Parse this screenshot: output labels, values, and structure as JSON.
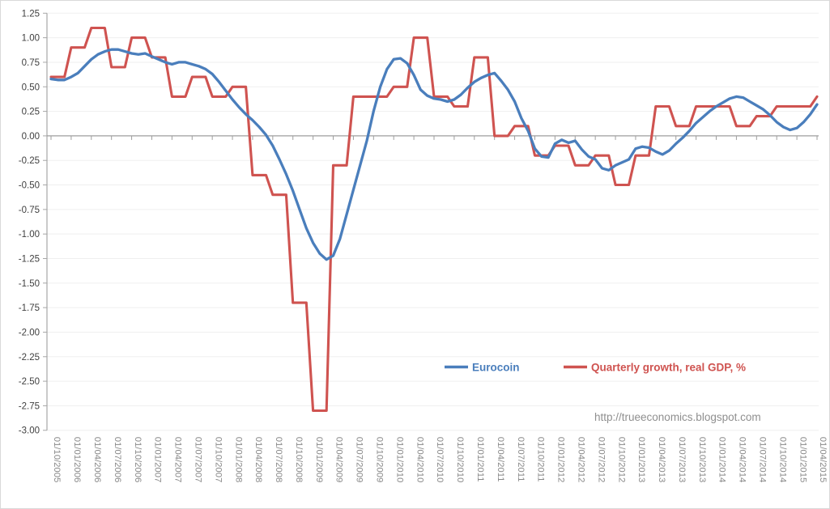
{
  "watermark": "http://trueeconomics.blogspot.com",
  "colors": {
    "eurocoin": "#4a7ebc",
    "gdp": "#cf5350",
    "grid": "#efefef",
    "axis": "#a6a6a6",
    "zero_line": "#9e9e9e",
    "x_label": "#898989",
    "y_label": "#3f3f3f",
    "watermark": "#8f8f8f",
    "frame_border": "#d9d9d9"
  },
  "legend": {
    "items": [
      {
        "label": "Eurocoin",
        "color_key": "eurocoin"
      },
      {
        "label": "Quarterly growth, real GDP, %",
        "color_key": "gdp"
      }
    ]
  },
  "chart_data": {
    "type": "line",
    "title": "",
    "xlabel": "",
    "ylabel": "",
    "grid": "horizontal",
    "legend_position": "inside-bottom-center",
    "ylim": [
      -3.0,
      1.25
    ],
    "y_tick_step": 0.25,
    "y_tick_labels": [
      "1.25",
      "1.00",
      "0.75",
      "0.50",
      "0.25",
      "0.00",
      "-0.25",
      "-0.50",
      "-0.75",
      "-1.00",
      "-1.25",
      "-1.50",
      "-1.75",
      "-2.00",
      "-2.25",
      "-2.50",
      "-2.75",
      "-3.00"
    ],
    "x_tick_labels": [
      "01/10/2005",
      "01/01/2006",
      "01/04/2006",
      "01/07/2006",
      "01/10/2006",
      "01/01/2007",
      "01/04/2007",
      "01/07/2007",
      "01/10/2007",
      "01/01/2008",
      "01/04/2008",
      "01/07/2008",
      "01/10/2008",
      "01/01/2009",
      "01/04/2009",
      "01/07/2009",
      "01/10/2009",
      "01/01/2010",
      "01/04/2010",
      "01/07/2010",
      "01/10/2010",
      "01/01/2011",
      "01/04/2011",
      "01/07/2011",
      "01/10/2011",
      "01/01/2012",
      "01/04/2012",
      "01/07/2012",
      "01/10/2012",
      "01/01/2013",
      "01/04/2013",
      "01/07/2013",
      "01/10/2013",
      "01/01/2014",
      "01/04/2014",
      "01/07/2014",
      "01/10/2014",
      "01/01/2015",
      "01/04/2015"
    ],
    "series": [
      {
        "name": "Eurocoin",
        "frequency": "monthly",
        "color_key": "eurocoin",
        "values": [
          0.58,
          0.57,
          0.57,
          0.6,
          0.64,
          0.71,
          0.78,
          0.83,
          0.86,
          0.88,
          0.88,
          0.86,
          0.84,
          0.83,
          0.84,
          0.81,
          0.78,
          0.75,
          0.73,
          0.75,
          0.75,
          0.73,
          0.71,
          0.68,
          0.63,
          0.55,
          0.46,
          0.37,
          0.29,
          0.22,
          0.16,
          0.09,
          0.01,
          -0.1,
          -0.24,
          -0.39,
          -0.56,
          -0.75,
          -0.94,
          -1.09,
          -1.2,
          -1.26,
          -1.22,
          -1.05,
          -0.8,
          -0.55,
          -0.3,
          -0.05,
          0.25,
          0.5,
          0.68,
          0.78,
          0.79,
          0.74,
          0.62,
          0.47,
          0.41,
          0.38,
          0.37,
          0.35,
          0.37,
          0.42,
          0.49,
          0.55,
          0.59,
          0.62,
          0.64,
          0.56,
          0.47,
          0.35,
          0.18,
          0.05,
          -0.13,
          -0.21,
          -0.22,
          -0.08,
          -0.04,
          -0.07,
          -0.05,
          -0.14,
          -0.21,
          -0.24,
          -0.33,
          -0.35,
          -0.3,
          -0.27,
          -0.24,
          -0.13,
          -0.11,
          -0.12,
          -0.16,
          -0.19,
          -0.15,
          -0.08,
          -0.02,
          0.05,
          0.13,
          0.19,
          0.25,
          0.3,
          0.34,
          0.38,
          0.4,
          0.39,
          0.35,
          0.31,
          0.27,
          0.21,
          0.14,
          0.09,
          0.06,
          0.08,
          0.14,
          0.22,
          0.32
        ]
      },
      {
        "name": "Quarterly growth, real GDP, %",
        "frequency": "quarterly",
        "color_key": "gdp",
        "values": [
          0.6,
          0.9,
          1.1,
          0.7,
          1.0,
          0.8,
          0.4,
          0.6,
          0.4,
          0.5,
          -0.4,
          -0.6,
          -1.7,
          -2.8,
          -0.3,
          0.4,
          0.4,
          0.5,
          1.0,
          0.4,
          0.3,
          0.8,
          0.0,
          0.1,
          -0.2,
          -0.1,
          -0.3,
          -0.2,
          -0.5,
          -0.2,
          0.3,
          0.1,
          0.3,
          0.3,
          0.1,
          0.2,
          0.3,
          0.3,
          0.4
        ]
      }
    ]
  }
}
